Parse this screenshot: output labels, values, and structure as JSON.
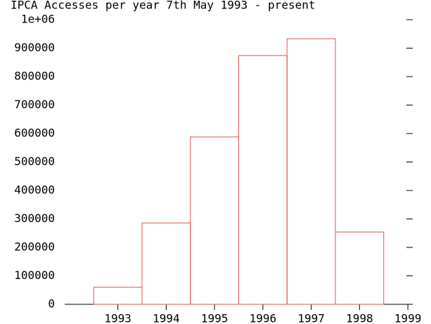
{
  "chart_data": {
    "type": "histogram",
    "title": "IPCA Accesses per year 7th May 1993 - present",
    "bins": [
      1992.5,
      1993.5,
      1994.5,
      1995.5,
      1996.5,
      1997.5,
      1998.5
    ],
    "values": [
      60000,
      286000,
      588000,
      874000,
      933000,
      254000
    ],
    "color": "#e05050",
    "xlim": [
      1991.9,
      1999.1
    ],
    "xticks": [
      1993,
      1994,
      1995,
      1996,
      1997,
      1998,
      1999
    ],
    "ylim": [
      0,
      1000000
    ],
    "yticks": [
      0,
      100000,
      200000,
      300000,
      400000,
      500000,
      600000,
      700000,
      800000,
      900000,
      {
        "value": 1000000,
        "label": "1e+06"
      }
    ]
  }
}
